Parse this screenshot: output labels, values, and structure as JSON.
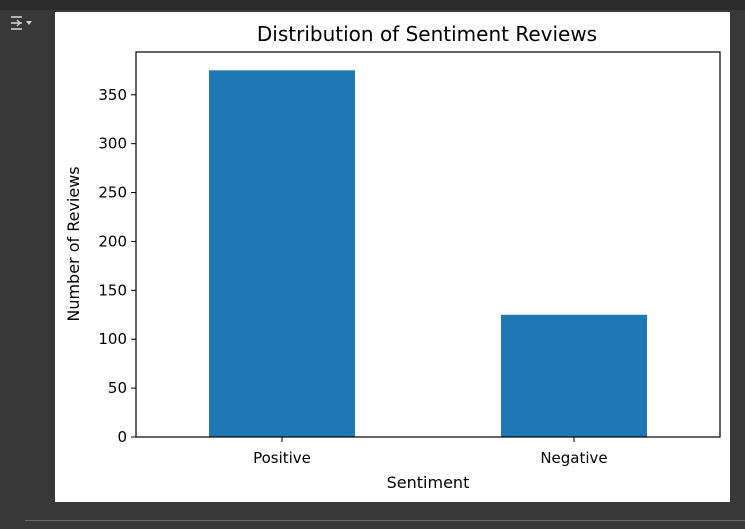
{
  "output_toggle": {
    "icon": "collapse-output-icon"
  },
  "chart_data": {
    "type": "bar",
    "title": "Distribution of Sentiment Reviews",
    "xlabel": "Sentiment",
    "ylabel": "Number of Reviews",
    "categories": [
      "Positive",
      "Negative"
    ],
    "values": [
      375,
      125
    ],
    "ylim": [
      0,
      393.75
    ],
    "yticks": [
      0,
      50,
      100,
      150,
      200,
      250,
      300,
      350
    ],
    "bar_color": "#1f77b4",
    "grid": false,
    "legend": "none"
  }
}
